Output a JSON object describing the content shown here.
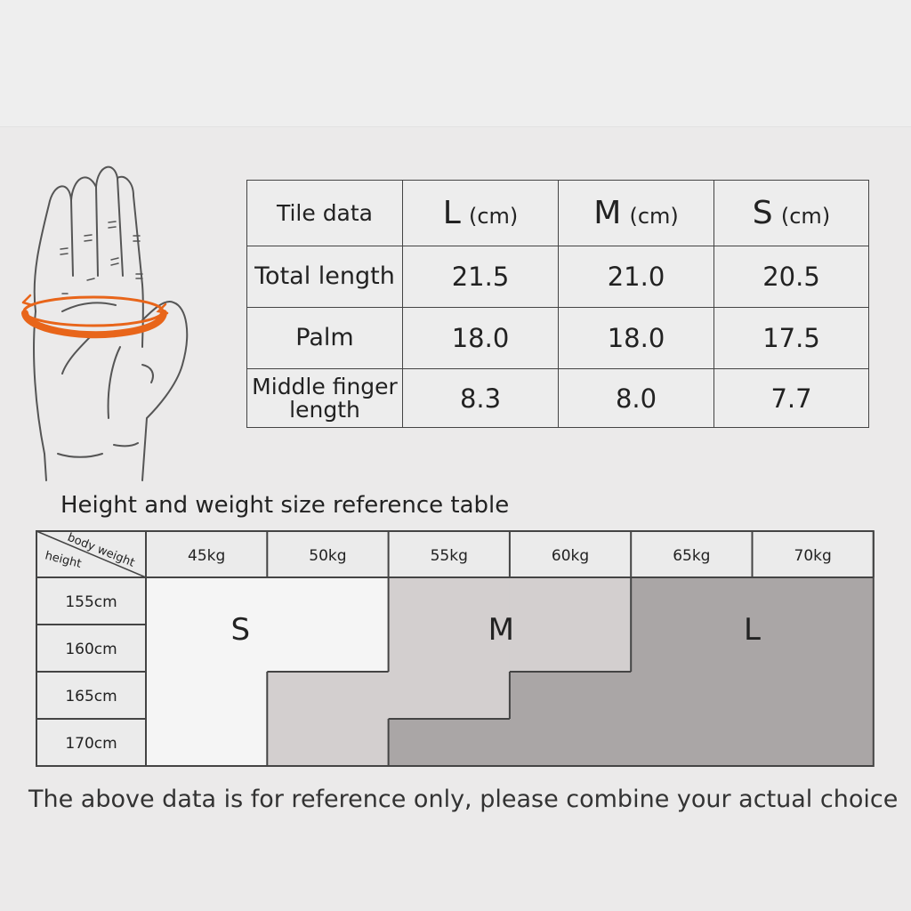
{
  "dimensions_table": {
    "header": {
      "label": "Tile data",
      "columns": [
        {
          "size": "L",
          "unit": "(cm)"
        },
        {
          "size": "M",
          "unit": "(cm)"
        },
        {
          "size": "S",
          "unit": "(cm)"
        }
      ]
    },
    "rows": [
      {
        "label": "Total length",
        "values": [
          "21.5",
          "21.0",
          "20.5"
        ]
      },
      {
        "label": "Palm",
        "values": [
          "18.0",
          "18.0",
          "17.5"
        ]
      },
      {
        "label": "Middle finger length",
        "values": [
          "8.3",
          "8.0",
          "7.7"
        ]
      }
    ]
  },
  "size_reference": {
    "title": "Height and weight size reference table",
    "corner_top": "body weight",
    "corner_bottom": "height",
    "weights": [
      "45kg",
      "50kg",
      "55kg",
      "60kg",
      "65kg",
      "70kg"
    ],
    "heights": [
      "155cm",
      "160cm",
      "165cm",
      "170cm"
    ],
    "grid": [
      [
        "S",
        "S",
        "M",
        "M",
        "L",
        "L"
      ],
      [
        "S",
        "S",
        "M",
        "M",
        "L",
        "L"
      ],
      [
        "S",
        "M",
        "M",
        "L",
        "L",
        "L"
      ],
      [
        "S",
        "M",
        "L",
        "L",
        "L",
        "L"
      ]
    ],
    "size_labels": {
      "S": "S",
      "M": "M",
      "L": "L"
    },
    "colors": {
      "S": "#f5f5f5",
      "M": "#d3cfcf",
      "L": "#aaa6a6",
      "header": "#ebebeb"
    }
  },
  "note": "The above data is for reference only, please combine your actual choice",
  "accent_color": "#e8651a"
}
